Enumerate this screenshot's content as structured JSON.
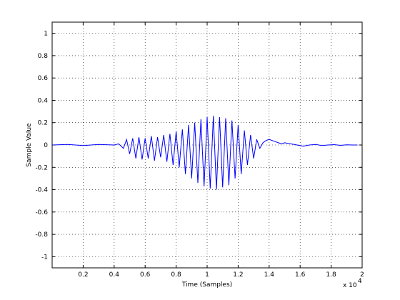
{
  "chart_data": {
    "type": "line",
    "title": "",
    "xlabel": "Time (Samples)",
    "ylabel": "Sample Value",
    "x_multiplier_label": "x 10",
    "x_multiplier_exp": "4",
    "xlim": [
      0,
      20000
    ],
    "ylim": [
      -1.1,
      1.1
    ],
    "xticks": [
      2000,
      4000,
      6000,
      8000,
      10000,
      12000,
      14000,
      16000,
      18000,
      20000
    ],
    "xtick_labels": [
      "0.2",
      "0.4",
      "0.6",
      "0.8",
      "1",
      "1.2",
      "1.4",
      "1.6",
      "1.8",
      "2"
    ],
    "yticks": [
      -1,
      -0.8,
      -0.6,
      -0.4,
      -0.2,
      0,
      0.2,
      0.4,
      0.6,
      0.8,
      1
    ],
    "ytick_labels": [
      "-1",
      "-0.8",
      "-0.6",
      "-0.4",
      "-0.2",
      "0",
      "0.2",
      "0.4",
      "0.6",
      "0.8",
      "1"
    ],
    "grid": true,
    "series": [
      {
        "color": "#0000ff",
        "x": [
          0,
          1000,
          2000,
          3000,
          4000,
          4300,
          4600,
          4800,
          5000,
          5200,
          5400,
          5600,
          5800,
          6000,
          6200,
          6400,
          6600,
          6800,
          7000,
          7200,
          7400,
          7600,
          7800,
          8000,
          8200,
          8400,
          8600,
          8800,
          9000,
          9200,
          9400,
          9600,
          9800,
          10000,
          10200,
          10400,
          10600,
          10800,
          11000,
          11200,
          11400,
          11600,
          11800,
          12000,
          12200,
          12400,
          12600,
          12800,
          13000,
          13200,
          13400,
          13600,
          13800,
          14000,
          14200,
          14400,
          14600,
          14800,
          15000,
          15400,
          15800,
          16200,
          16600,
          17000,
          17400,
          17800,
          18200,
          18600,
          19000,
          19400,
          19700
        ],
        "y": [
          0,
          0.005,
          -0.005,
          0.005,
          0,
          0.01,
          -0.03,
          0.05,
          -0.08,
          0.06,
          -0.12,
          0.07,
          -0.13,
          0.06,
          -0.12,
          0.08,
          -0.14,
          0.07,
          -0.11,
          0.09,
          -0.15,
          0.1,
          -0.18,
          0.12,
          -0.2,
          0.14,
          -0.26,
          0.18,
          -0.3,
          0.2,
          -0.34,
          0.23,
          -0.37,
          0.25,
          -0.39,
          0.26,
          -0.4,
          0.25,
          -0.38,
          0.24,
          -0.36,
          0.22,
          -0.3,
          0.18,
          -0.26,
          0.13,
          -0.18,
          0.09,
          -0.12,
          0.05,
          -0.03,
          0.02,
          0.04,
          0.05,
          0.04,
          0.03,
          0.02,
          0.01,
          0.02,
          0.01,
          0.0,
          -0.01,
          0.0,
          0.005,
          -0.005,
          0,
          0.003,
          -0.003,
          0.002,
          0,
          0
        ]
      }
    ]
  }
}
